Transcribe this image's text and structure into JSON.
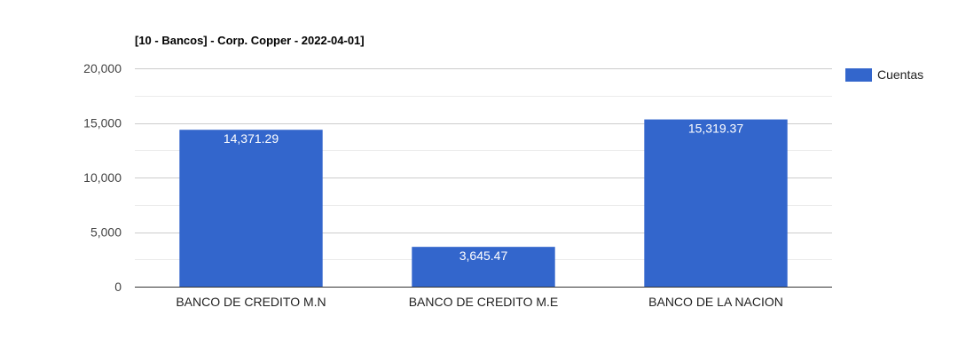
{
  "chart_data": {
    "type": "bar",
    "title": "[10 - Bancos] - Corp. Copper - 2022-04-01]",
    "xlabel": "",
    "ylabel": "",
    "categories": [
      "BANCO DE CREDITO M.N",
      "BANCO DE CREDITO M.E",
      "BANCO DE LA NACION"
    ],
    "series": [
      {
        "name": "Cuentas",
        "values": [
          14371.29,
          3645.47,
          15319.37
        ],
        "labels": [
          "14,371.29",
          "3,645.47",
          "15,319.37"
        ],
        "color": "#3366cc"
      }
    ],
    "ylim": [
      0,
      20000
    ],
    "yticks": [
      0,
      5000,
      10000,
      15000,
      20000
    ],
    "ytick_labels": [
      "0",
      "5,000",
      "10,000",
      "15,000",
      "20,000"
    ],
    "grid": true,
    "legend_position": "right"
  }
}
